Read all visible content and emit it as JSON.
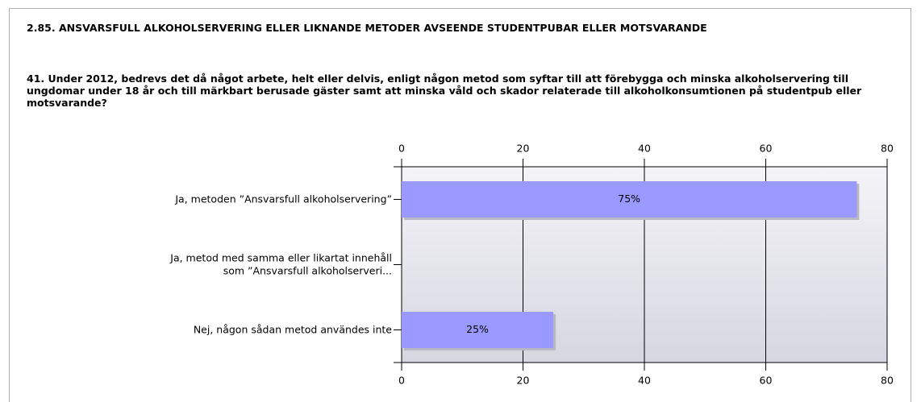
{
  "chart_data": {
    "type": "hbar",
    "section_title": "2.85. ANSVARSFULL ALKOHOLSERVERING ELLER LIKNANDE METODER AVSEENDE STUDENTPUBAR ELLER MOTSVARANDE",
    "title": "41. Under 2012, bedrevs det då något arbete, helt eller delvis, enligt någon metod som syftar till att förebygga och minska alkoholservering till ungdomar under 18 år och till märkbart berusade gäster samt att minska våld och skador relaterade till alkoholkonsumtionen på studentpub eller motsvarande?",
    "categories": [
      "Ja, metoden ”Ansvarsfull alkoholservering”",
      "Ja, metod med samma eller likartat innehåll som ”Ansvarsfull alkoholserveri...",
      "Nej, någon sådan metod användes inte"
    ],
    "values": [
      75,
      0,
      25
    ],
    "value_labels": [
      "75%",
      null,
      "25%"
    ],
    "color": "#9999ff",
    "xlim": [
      0,
      80
    ],
    "xticks": [
      0,
      20,
      40,
      60,
      80
    ],
    "grid": true
  }
}
